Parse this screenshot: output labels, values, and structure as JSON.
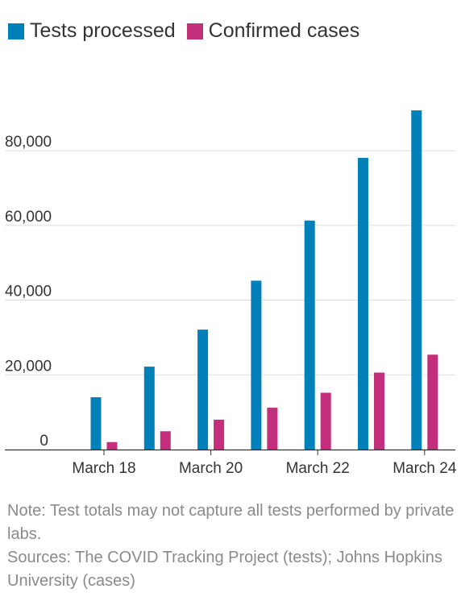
{
  "chart_data": {
    "type": "bar",
    "categories": [
      "March 18",
      "March 19",
      "March 20",
      "March 21",
      "March 22",
      "March 23",
      "March 24"
    ],
    "series": [
      {
        "name": "Tests processed",
        "color": "#0080B8",
        "values": [
          14000,
          22200,
          32100,
          45200,
          61300,
          78100,
          90800
        ]
      },
      {
        "name": "Confirmed cases",
        "color": "#C42F7C",
        "values": [
          2000,
          4900,
          8000,
          11200,
          15200,
          20600,
          25400
        ]
      }
    ],
    "x_tick_labels": [
      "March 18",
      "March 20",
      "March 22",
      "March 24"
    ],
    "y_ticks": [
      0,
      20000,
      40000,
      60000,
      80000
    ],
    "y_tick_labels": [
      "0",
      "20,000",
      "40,000",
      "60,000",
      "80,000"
    ],
    "ylim": [
      0,
      90800
    ],
    "grid": true,
    "legend_position": "top-left",
    "title": "",
    "xlabel": "",
    "ylabel": ""
  },
  "notes": {
    "note": "Note: Test totals may not capture all tests performed by private labs.",
    "sources": "Sources: The COVID Tracking Project (tests); Johns Hopkins University (cases)"
  }
}
